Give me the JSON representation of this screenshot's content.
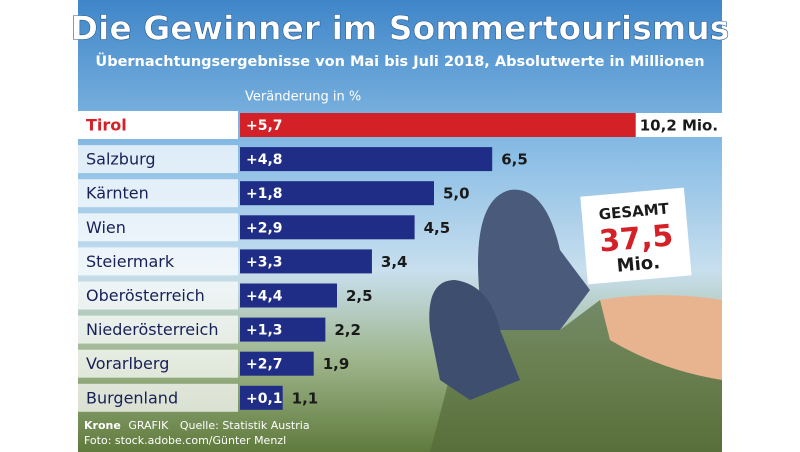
{
  "chart_data": {
    "type": "bar",
    "orientation": "horizontal",
    "title": "Die Gewinner im Sommertourismus",
    "subtitle": "Übernachtungsergebnisse von Mai bis Juli 2018, Absolutwerte in Millionen",
    "change_header": "Veränderung in %",
    "categories": [
      "Tirol",
      "Salzburg",
      "Kärnten",
      "Wien",
      "Steiermark",
      "Oberösterreich",
      "Niederösterreich",
      "Vorarlberg",
      "Burgenland"
    ],
    "values": [
      10.2,
      6.5,
      5.0,
      4.5,
      3.4,
      2.5,
      2.2,
      1.9,
      1.1
    ],
    "value_labels": [
      "10,2 Mio.",
      "6,5",
      "5,0",
      "4,5",
      "3,4",
      "2,5",
      "2,2",
      "1,9",
      "1,1"
    ],
    "changes": {
      "values": [
        5.7,
        4.8,
        1.8,
        2.9,
        3.3,
        4.4,
        1.3,
        2.7,
        0.1
      ],
      "value_labels": [
        "+5,7",
        "+4,8",
        "+1,8",
        "+2,9",
        "+3,3",
        "+4,4",
        "+1,3",
        "+2,7",
        "+0,1"
      ]
    },
    "color": "#1f2d86",
    "highlight_color": "#d42027",
    "highlight_index": 0,
    "total": {
      "label": "GESAMT",
      "value": 37.5,
      "value_label": "37,5",
      "unit": "Mio."
    },
    "footer": {
      "brand": "Krone",
      "brand_tag": "GRAFIK",
      "source": "Quelle: Statistik Austria",
      "photo": "Foto: stock.adobe.com/Günter Menzl"
    }
  }
}
